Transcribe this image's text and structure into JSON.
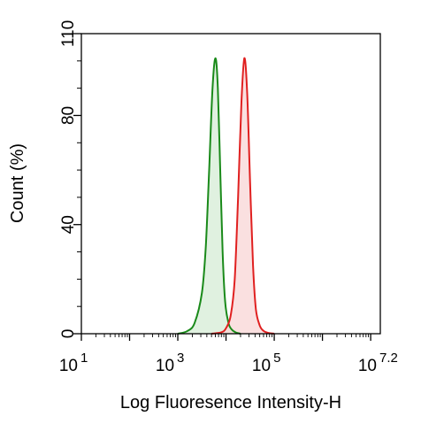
{
  "chart_data": {
    "type": "area",
    "title": "",
    "xlabel": "Log Fluoresence Intensity-H",
    "ylabel": "Count  (%)",
    "x_scale": "log10",
    "xlim": [
      1,
      7.2
    ],
    "ylim": [
      0,
      110
    ],
    "x_ticks": [
      {
        "base": "10",
        "exp": "1",
        "value": 1
      },
      {
        "base": "10",
        "exp": "3",
        "value": 3
      },
      {
        "base": "10",
        "exp": "5",
        "value": 5
      },
      {
        "base": "10",
        "exp": "7.2",
        "value": 7.2
      }
    ],
    "y_ticks": [
      {
        "label": "0",
        "value": 0
      },
      {
        "label": "40",
        "value": 40
      },
      {
        "label": "80",
        "value": 80
      },
      {
        "label": "110",
        "value": 110
      }
    ],
    "grid": false,
    "legend": "none",
    "series": [
      {
        "color": "#1a8a1a",
        "fill": "#d6ecd6",
        "x": [
          3.0,
          3.2,
          3.35,
          3.5,
          3.58,
          3.65,
          3.72,
          3.78,
          3.83,
          3.88,
          3.93,
          3.98,
          4.05,
          4.12,
          4.2,
          4.3
        ],
        "y": [
          0,
          1,
          4,
          15,
          32,
          60,
          90,
          101,
          90,
          60,
          30,
          12,
          4,
          1.5,
          0.5,
          0
        ]
      },
      {
        "color": "#e02020",
        "fill": "#f8d6d6",
        "x": [
          3.7,
          3.9,
          4.0,
          4.1,
          4.18,
          4.25,
          4.32,
          4.38,
          4.44,
          4.5,
          4.56,
          4.62,
          4.7,
          4.78,
          4.88,
          5.0
        ],
        "y": [
          0,
          0.5,
          2,
          7,
          20,
          50,
          85,
          101,
          88,
          55,
          25,
          9,
          3,
          1,
          0.3,
          0
        ]
      }
    ]
  }
}
